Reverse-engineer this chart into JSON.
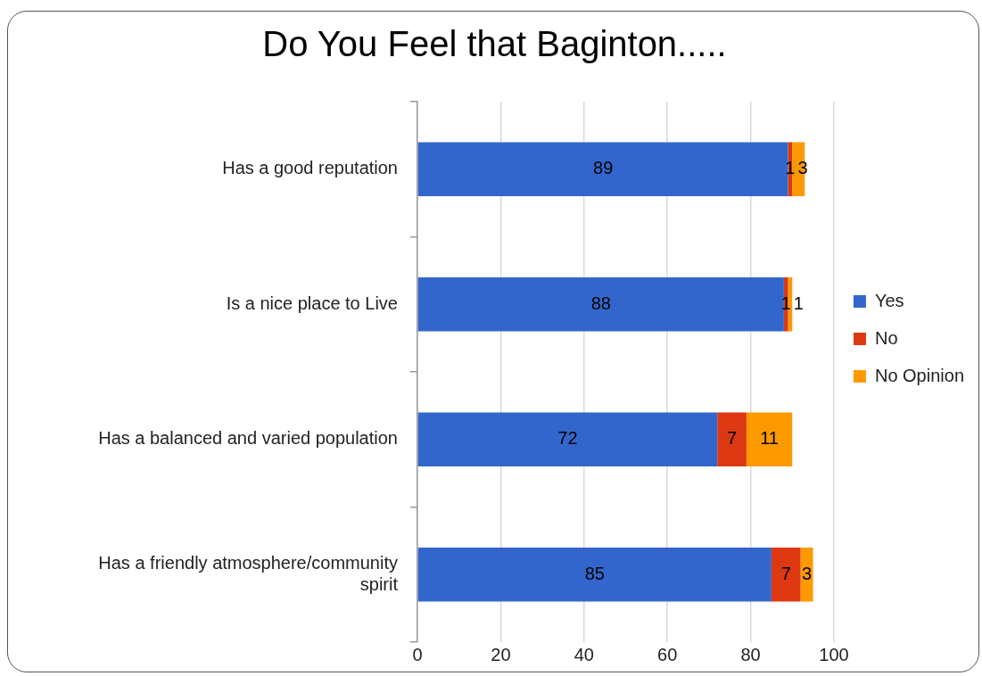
{
  "chart_data": {
    "type": "bar",
    "title": "Do You Feel that Baginton.....",
    "orientation": "horizontal",
    "stacked": true,
    "categories": [
      "Has a good reputation",
      "Is a nice place to Live",
      "Has a balanced and varied population",
      "Has a friendly atmosphere/community spirit"
    ],
    "series": [
      {
        "name": "Yes",
        "color": "#3366cc",
        "values": [
          89,
          88,
          72,
          85
        ]
      },
      {
        "name": "No",
        "color": "#dc3912",
        "values": [
          1,
          1,
          7,
          7
        ]
      },
      {
        "name": "No Opinion",
        "color": "#ff9900",
        "values": [
          3,
          1,
          11,
          3
        ]
      }
    ],
    "xlim": [
      0,
      100
    ],
    "xticks": [
      0,
      20,
      40,
      60,
      80,
      100
    ],
    "grid": "x",
    "legend": "right",
    "data_labels": true
  }
}
